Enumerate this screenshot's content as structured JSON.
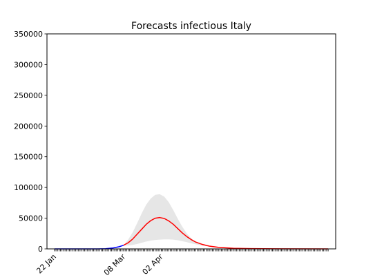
{
  "chart_data": {
    "type": "line",
    "title": "Forecasts infectious Italy",
    "xlabel": "",
    "ylabel": "",
    "x_unit": "day",
    "x_range": [
      "2020-01-17",
      "2020-07-27"
    ],
    "ylim": [
      0,
      350000
    ],
    "yticks": [
      0,
      50000,
      100000,
      150000,
      200000,
      250000,
      300000,
      350000
    ],
    "ytick_labels": [
      "0",
      "50000",
      "100000",
      "150000",
      "200000",
      "250000",
      "300000",
      "350000"
    ],
    "xticks_labeled": [
      {
        "date": "2020-01-22",
        "label": "22 Jan"
      },
      {
        "date": "2020-03-08",
        "label": "08 Mar"
      },
      {
        "date": "2020-04-02",
        "label": "02 Apr"
      }
    ],
    "minor_tick_range": [
      "2020-01-22",
      "2020-07-22"
    ],
    "grid": false,
    "series": [
      {
        "role": "observed",
        "color": "#0000ff",
        "points": [
          [
            "2020-01-22",
            0
          ],
          [
            "2020-02-10",
            0
          ],
          [
            "2020-02-20",
            0
          ],
          [
            "2020-02-25",
            300
          ],
          [
            "2020-03-01",
            1500
          ],
          [
            "2020-03-05",
            3500
          ],
          [
            "2020-03-08",
            6000
          ]
        ]
      },
      {
        "role": "forecast",
        "color": "#ff0000",
        "points": [
          [
            "2020-03-08",
            6000
          ],
          [
            "2020-03-11",
            10000
          ],
          [
            "2020-03-14",
            16000
          ],
          [
            "2020-03-17",
            24000
          ],
          [
            "2020-03-20",
            32000
          ],
          [
            "2020-03-23",
            40000
          ],
          [
            "2020-03-26",
            46000
          ],
          [
            "2020-03-29",
            50000
          ],
          [
            "2020-04-01",
            51000
          ],
          [
            "2020-04-04",
            49500
          ],
          [
            "2020-04-07",
            45500
          ],
          [
            "2020-04-10",
            40000
          ],
          [
            "2020-04-13",
            33000
          ],
          [
            "2020-04-16",
            26000
          ],
          [
            "2020-04-19",
            20000
          ],
          [
            "2020-04-22",
            15000
          ],
          [
            "2020-04-25",
            11000
          ],
          [
            "2020-04-29",
            7500
          ],
          [
            "2020-05-04",
            4500
          ],
          [
            "2020-05-10",
            2500
          ],
          [
            "2020-05-20",
            1000
          ],
          [
            "2020-06-01",
            400
          ],
          [
            "2020-06-20",
            100
          ],
          [
            "2020-07-22",
            0
          ]
        ]
      }
    ],
    "band": {
      "color": "#e6e6e6",
      "upper": [
        [
          "2020-03-08",
          6000
        ],
        [
          "2020-03-11",
          15000
        ],
        [
          "2020-03-14",
          27000
        ],
        [
          "2020-03-17",
          42000
        ],
        [
          "2020-03-20",
          58000
        ],
        [
          "2020-03-23",
          72000
        ],
        [
          "2020-03-26",
          82000
        ],
        [
          "2020-03-29",
          88000
        ],
        [
          "2020-04-01",
          89000
        ],
        [
          "2020-04-04",
          85000
        ],
        [
          "2020-04-07",
          76000
        ],
        [
          "2020-04-10",
          63000
        ],
        [
          "2020-04-13",
          49000
        ],
        [
          "2020-04-16",
          36000
        ],
        [
          "2020-04-19",
          25000
        ],
        [
          "2020-04-22",
          17000
        ],
        [
          "2020-04-25",
          11000
        ],
        [
          "2020-04-29",
          7000
        ],
        [
          "2020-05-04",
          4500
        ],
        [
          "2020-05-10",
          2500
        ],
        [
          "2020-05-20",
          1000
        ],
        [
          "2020-06-01",
          400
        ],
        [
          "2020-06-20",
          100
        ],
        [
          "2020-07-22",
          0
        ]
      ],
      "lower": [
        [
          "2020-03-08",
          6000
        ],
        [
          "2020-03-11",
          5500
        ],
        [
          "2020-03-14",
          6500
        ],
        [
          "2020-03-17",
          8000
        ],
        [
          "2020-03-20",
          10000
        ],
        [
          "2020-03-23",
          12000
        ],
        [
          "2020-03-26",
          13500
        ],
        [
          "2020-03-29",
          14500
        ],
        [
          "2020-04-01",
          15000
        ],
        [
          "2020-04-04",
          15500
        ],
        [
          "2020-04-07",
          15500
        ],
        [
          "2020-04-10",
          15000
        ],
        [
          "2020-04-13",
          14000
        ],
        [
          "2020-04-16",
          12500
        ],
        [
          "2020-04-19",
          11000
        ],
        [
          "2020-04-22",
          9000
        ],
        [
          "2020-04-25",
          7500
        ],
        [
          "2020-04-29",
          5500
        ],
        [
          "2020-05-04",
          3500
        ],
        [
          "2020-05-10",
          2000
        ],
        [
          "2020-05-20",
          800
        ],
        [
          "2020-06-01",
          300
        ],
        [
          "2020-06-20",
          80
        ],
        [
          "2020-07-22",
          0
        ]
      ]
    }
  }
}
